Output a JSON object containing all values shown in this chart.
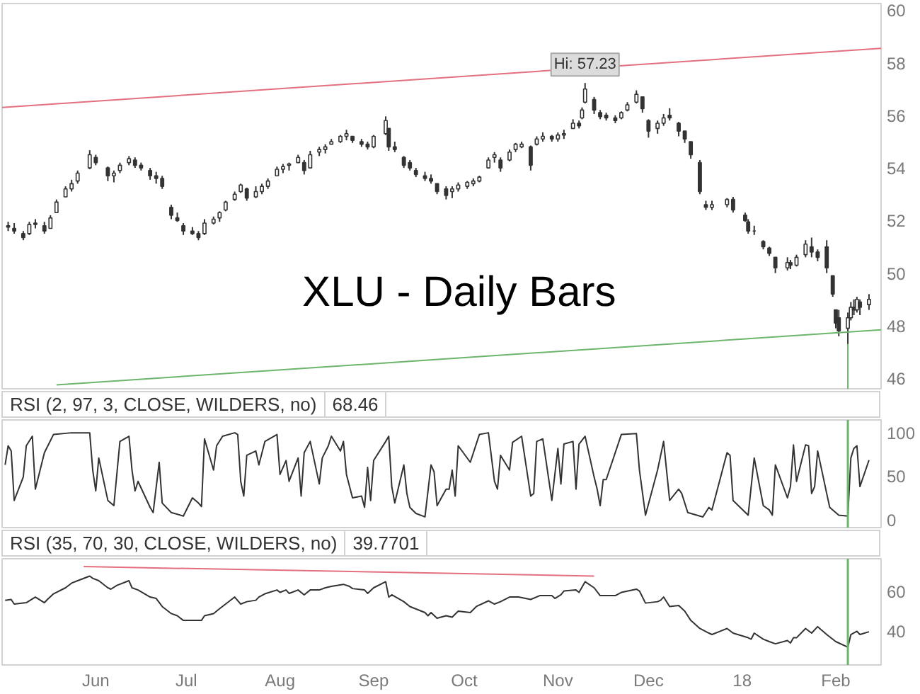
{
  "chart_data": [
    {
      "type": "candlestick",
      "title": "XLU - Daily Bars",
      "color": "#333333",
      "x": [
        "2017-05-03",
        "2017-05-05",
        "2017-05-08",
        "2017-05-10",
        "2017-05-12",
        "2017-05-15",
        "2017-05-17",
        "2017-05-19",
        "2017-05-22",
        "2017-05-24",
        "2017-05-26",
        "2017-05-30",
        "2017-06-01",
        "2017-06-05",
        "2017-06-07",
        "2017-06-09",
        "2017-06-12",
        "2017-06-14",
        "2017-06-16",
        "2017-06-19",
        "2017-06-21",
        "2017-06-23",
        "2017-06-26",
        "2017-06-28",
        "2017-06-30",
        "2017-07-03",
        "2017-07-05",
        "2017-07-07",
        "2017-07-10",
        "2017-07-12",
        "2017-07-14",
        "2017-07-17",
        "2017-07-19",
        "2017-07-21",
        "2017-07-24",
        "2017-07-26",
        "2017-07-28",
        "2017-07-31",
        "2017-08-02",
        "2017-08-04",
        "2017-08-07",
        "2017-08-09",
        "2017-08-11",
        "2017-08-14",
        "2017-08-16",
        "2017-08-18",
        "2017-08-21",
        "2017-08-23",
        "2017-08-25",
        "2017-08-28",
        "2017-08-30",
        "2017-09-01",
        "2017-09-05",
        "2017-09-06",
        "2017-09-08",
        "2017-09-11",
        "2017-09-13",
        "2017-09-15",
        "2017-09-18",
        "2017-09-20",
        "2017-09-22",
        "2017-09-25",
        "2017-09-27",
        "2017-09-29",
        "2017-10-02",
        "2017-10-04",
        "2017-10-06",
        "2017-10-09",
        "2017-10-11",
        "2017-10-13",
        "2017-10-16",
        "2017-10-18",
        "2017-10-20",
        "2017-10-23",
        "2017-10-25",
        "2017-10-27",
        "2017-10-30",
        "2017-11-01",
        "2017-11-03",
        "2017-11-06",
        "2017-11-08",
        "2017-11-09",
        "2017-11-10",
        "2017-11-13",
        "2017-11-15",
        "2017-11-17",
        "2017-11-20",
        "2017-11-22",
        "2017-11-24",
        "2017-11-27",
        "2017-11-29",
        "2017-12-01",
        "2017-12-04",
        "2017-12-06",
        "2017-12-08",
        "2017-12-11",
        "2017-12-13",
        "2017-12-15",
        "2017-12-18",
        "2017-12-20",
        "2017-12-22",
        "2017-12-27",
        "2017-12-29",
        "2018-01-02",
        "2018-01-03",
        "2018-01-05",
        "2018-01-08",
        "2018-01-10",
        "2018-01-12",
        "2018-01-16",
        "2018-01-17",
        "2018-01-19",
        "2018-01-22",
        "2018-01-24",
        "2018-01-26",
        "2018-01-29",
        "2018-01-31",
        "2018-02-01",
        "2018-02-02",
        "2018-02-05",
        "2018-02-06",
        "2018-02-07",
        "2018-02-08",
        "2018-02-09",
        "2018-02-12"
      ],
      "ohlc": [
        [
          51.8,
          51.95,
          51.6,
          51.75
        ],
        [
          51.7,
          51.9,
          51.5,
          51.6
        ],
        [
          51.5,
          51.6,
          51.25,
          51.35
        ],
        [
          51.5,
          51.95,
          51.45,
          51.85
        ],
        [
          51.9,
          52.05,
          51.7,
          51.85
        ],
        [
          51.8,
          51.95,
          51.5,
          51.6
        ],
        [
          51.7,
          52.2,
          51.7,
          52.1
        ],
        [
          52.3,
          52.8,
          52.3,
          52.7
        ],
        [
          52.9,
          53.3,
          52.9,
          53.2
        ],
        [
          53.2,
          53.55,
          53.1,
          53.4
        ],
        [
          53.5,
          53.9,
          53.4,
          53.8
        ],
        [
          54.0,
          54.67,
          53.95,
          54.5
        ],
        [
          54.4,
          54.5,
          54.1,
          54.2
        ],
        [
          54.0,
          54.05,
          53.5,
          53.7
        ],
        [
          53.7,
          53.9,
          53.45,
          53.8
        ],
        [
          53.9,
          54.2,
          53.8,
          54.1
        ],
        [
          54.2,
          54.45,
          54.1,
          54.35
        ],
        [
          54.3,
          54.4,
          54.0,
          54.1
        ],
        [
          54.1,
          54.2,
          53.9,
          54.0
        ],
        [
          53.9,
          54.0,
          53.55,
          53.7
        ],
        [
          53.7,
          53.85,
          53.4,
          53.6
        ],
        [
          53.6,
          53.7,
          53.2,
          53.3
        ],
        [
          52.5,
          52.6,
          52.05,
          52.2
        ],
        [
          52.1,
          52.3,
          51.95,
          52.0
        ],
        [
          51.8,
          51.9,
          51.45,
          51.6
        ],
        [
          51.6,
          51.75,
          51.45,
          51.5
        ],
        [
          51.5,
          51.6,
          51.25,
          51.35
        ],
        [
          51.5,
          52.05,
          51.45,
          51.9
        ],
        [
          51.9,
          52.15,
          51.85,
          52.05
        ],
        [
          52.1,
          52.35,
          51.95,
          52.3
        ],
        [
          52.4,
          52.75,
          52.35,
          52.7
        ],
        [
          52.8,
          53.1,
          52.75,
          53.0
        ],
        [
          53.1,
          53.4,
          53.05,
          53.35
        ],
        [
          53.2,
          53.25,
          52.75,
          52.85
        ],
        [
          52.9,
          53.3,
          52.85,
          53.1
        ],
        [
          53.1,
          53.4,
          53.0,
          53.3
        ],
        [
          53.3,
          53.6,
          53.2,
          53.5
        ],
        [
          53.7,
          54.05,
          53.7,
          53.95
        ],
        [
          53.95,
          54.15,
          53.8,
          54.05
        ],
        [
          54.1,
          54.2,
          53.9,
          54.15
        ],
        [
          54.2,
          54.5,
          54.2,
          54.4
        ],
        [
          54.2,
          54.3,
          53.75,
          53.9
        ],
        [
          54.0,
          54.65,
          54.0,
          54.5
        ],
        [
          54.6,
          54.8,
          54.45,
          54.7
        ],
        [
          54.7,
          54.9,
          54.55,
          54.8
        ],
        [
          54.9,
          55.1,
          54.9,
          55.0
        ],
        [
          55.0,
          55.25,
          54.95,
          55.2
        ],
        [
          55.2,
          55.45,
          55.05,
          55.3
        ],
        [
          55.2,
          55.2,
          54.95,
          55.05
        ],
        [
          55.0,
          55.1,
          54.8,
          54.9
        ],
        [
          54.9,
          55.0,
          54.7,
          54.8
        ],
        [
          54.8,
          55.25,
          54.75,
          55.2
        ],
        [
          55.3,
          55.96,
          55.25,
          55.8
        ],
        [
          55.5,
          55.5,
          54.65,
          54.8
        ],
        [
          54.8,
          55.0,
          54.6,
          54.7
        ],
        [
          54.4,
          54.45,
          54.0,
          54.1
        ],
        [
          54.2,
          54.3,
          53.9,
          54.0
        ],
        [
          53.9,
          54.0,
          53.65,
          53.75
        ],
        [
          53.7,
          53.85,
          53.5,
          53.6
        ],
        [
          53.6,
          53.75,
          53.4,
          53.5
        ],
        [
          53.4,
          53.4,
          53.0,
          53.1
        ],
        [
          53.2,
          53.3,
          52.8,
          52.95
        ],
        [
          53.1,
          53.3,
          52.85,
          53.2
        ],
        [
          53.2,
          53.45,
          53.1,
          53.35
        ],
        [
          53.3,
          53.5,
          53.2,
          53.45
        ],
        [
          53.4,
          53.6,
          53.3,
          53.5
        ],
        [
          53.5,
          53.7,
          53.45,
          53.65
        ],
        [
          54.0,
          54.4,
          54.0,
          54.3
        ],
        [
          54.4,
          54.6,
          54.2,
          54.5
        ],
        [
          54.3,
          54.4,
          53.85,
          54.0
        ],
        [
          54.3,
          54.7,
          54.25,
          54.6
        ],
        [
          54.7,
          54.95,
          54.6,
          54.9
        ],
        [
          54.8,
          55.0,
          54.75,
          54.9
        ],
        [
          54.8,
          54.85,
          53.9,
          54.1
        ],
        [
          54.9,
          55.2,
          54.85,
          55.1
        ],
        [
          55.1,
          55.35,
          55.0,
          55.2
        ],
        [
          55.2,
          55.25,
          55.0,
          55.1
        ],
        [
          55.1,
          55.35,
          55.0,
          55.25
        ],
        [
          55.25,
          55.45,
          55.1,
          55.3
        ],
        [
          55.5,
          55.85,
          55.5,
          55.7
        ],
        [
          55.7,
          55.8,
          55.5,
          55.6
        ],
        [
          55.9,
          56.3,
          55.85,
          56.2
        ],
        [
          56.5,
          57.23,
          56.45,
          57.0
        ],
        [
          56.6,
          56.7,
          56.05,
          56.2
        ],
        [
          56.1,
          56.2,
          55.85,
          55.95
        ],
        [
          56.0,
          56.1,
          55.8,
          55.9
        ],
        [
          55.9,
          56.0,
          55.7,
          55.8
        ],
        [
          55.9,
          56.15,
          55.85,
          56.1
        ],
        [
          56.2,
          56.5,
          56.15,
          56.4
        ],
        [
          56.5,
          56.95,
          56.45,
          56.8
        ],
        [
          56.7,
          56.7,
          56.1,
          56.25
        ],
        [
          55.8,
          55.85,
          55.15,
          55.4
        ],
        [
          55.5,
          55.8,
          55.3,
          55.7
        ],
        [
          55.7,
          56.05,
          55.6,
          55.9
        ],
        [
          56.0,
          56.27,
          55.8,
          55.9
        ],
        [
          55.7,
          55.75,
          55.2,
          55.4
        ],
        [
          55.4,
          55.4,
          54.95,
          55.1
        ],
        [
          55.0,
          55.0,
          54.35,
          54.5
        ],
        [
          54.2,
          54.3,
          53.0,
          53.1
        ],
        [
          52.6,
          52.75,
          52.4,
          52.5
        ],
        [
          52.5,
          52.75,
          52.4,
          52.6
        ],
        [
          52.6,
          52.85,
          52.5,
          52.8
        ],
        [
          52.8,
          52.9,
          52.3,
          52.4
        ],
        [
          52.2,
          52.3,
          51.95,
          52.0
        ],
        [
          51.95,
          52.05,
          51.5,
          51.6
        ],
        [
          51.6,
          51.8,
          51.45,
          51.6
        ],
        [
          51.2,
          51.25,
          50.9,
          51.0
        ],
        [
          50.95,
          51.0,
          50.65,
          50.75
        ],
        [
          50.6,
          50.6,
          50.0,
          50.2
        ],
        [
          50.2,
          50.6,
          50.1,
          50.4
        ],
        [
          50.4,
          50.5,
          50.15,
          50.3
        ],
        [
          50.3,
          50.7,
          50.25,
          50.6
        ],
        [
          50.7,
          51.25,
          50.6,
          51.1
        ],
        [
          51.0,
          51.35,
          50.6,
          50.8
        ],
        [
          50.8,
          50.9,
          50.45,
          50.6
        ],
        [
          51.0,
          51.25,
          50.0,
          50.2
        ],
        [
          49.9,
          49.9,
          49.1,
          49.2
        ],
        [
          48.6,
          48.6,
          47.9,
          48.1
        ],
        [
          48.3,
          48.6,
          47.6,
          47.8
        ],
        [
          47.9,
          48.5,
          47.3,
          48.3
        ],
        [
          48.3,
          48.9,
          48.2,
          48.7
        ],
        [
          48.7,
          49.0,
          48.4,
          48.6
        ],
        [
          48.6,
          49.1,
          48.5,
          49.0
        ],
        [
          48.9,
          49.0,
          48.4,
          48.7
        ],
        [
          48.8,
          49.2,
          48.6,
          49.0
        ]
      ],
      "series": [
        {
          "type": "line",
          "color": "#e46f7e",
          "x": [
            "2017-05-01",
            "2018-02-16"
          ],
          "values": [
            56.3,
            58.55
          ]
        },
        {
          "type": "line",
          "color": "#6cb56c",
          "x": [
            "2017-05-19",
            "2018-02-16"
          ],
          "values": [
            45.75,
            47.84
          ]
        },
        {
          "type": "line",
          "color": "#6cb56c",
          "x": [
            "2018-02-05",
            "2018-02-05"
          ],
          "values": [
            45.6,
            47.3
          ]
        }
      ],
      "annotations": [
        {
          "text": "Hi: 57.23",
          "x": "2017-11-10",
          "y": 57.23
        }
      ],
      "xlim": [
        "2017-05-01",
        "2018-02-16"
      ],
      "ylim": [
        45.6,
        60.25
      ],
      "yticks": [
        46,
        48,
        50,
        52,
        54,
        56,
        58,
        60
      ],
      "tick_labels": "y"
    },
    {
      "type": "line",
      "title": "RSI (2, 97, 3, CLOSE, WILDERS, no)",
      "subtitle": "68.46",
      "series": [
        {
          "color": "#333333",
          "x": [
            "2017-05-02",
            "2017-05-03",
            "2017-05-04",
            "2017-05-05",
            "2017-05-08",
            "2017-05-09",
            "2017-05-11",
            "2017-05-12",
            "2017-05-15",
            "2017-05-18",
            "2017-05-24",
            "2017-05-30",
            "2017-05-31",
            "2017-06-01",
            "2017-06-02",
            "2017-06-05",
            "2017-06-07",
            "2017-06-09",
            "2017-06-12",
            "2017-06-13",
            "2017-06-14",
            "2017-06-15",
            "2017-06-19",
            "2017-06-20",
            "2017-06-22",
            "2017-06-23",
            "2017-06-26",
            "2017-06-30",
            "2017-07-03",
            "2017-07-05",
            "2017-07-06",
            "2017-07-07",
            "2017-07-10",
            "2017-07-11",
            "2017-07-13",
            "2017-07-17",
            "2017-07-18",
            "2017-07-19",
            "2017-07-20",
            "2017-07-21",
            "2017-07-24",
            "2017-07-25",
            "2017-07-27",
            "2017-07-31",
            "2017-08-01",
            "2017-08-03",
            "2017-08-04",
            "2017-08-07",
            "2017-08-08",
            "2017-08-09",
            "2017-08-11",
            "2017-08-14",
            "2017-08-15",
            "2017-08-17",
            "2017-08-18",
            "2017-08-21",
            "2017-08-22",
            "2017-08-23",
            "2017-08-25",
            "2017-08-28",
            "2017-08-29",
            "2017-08-30",
            "2017-08-31",
            "2017-09-01",
            "2017-09-05",
            "2017-09-06",
            "2017-09-07",
            "2017-09-08",
            "2017-09-11",
            "2017-09-12",
            "2017-09-13",
            "2017-09-15",
            "2017-09-18",
            "2017-09-20",
            "2017-09-21",
            "2017-09-22",
            "2017-09-25",
            "2017-09-26",
            "2017-09-27",
            "2017-09-28",
            "2017-09-29",
            "2017-10-03",
            "2017-10-06",
            "2017-10-09",
            "2017-10-11",
            "2017-10-12",
            "2017-10-13",
            "2017-10-16",
            "2017-10-17",
            "2017-10-20",
            "2017-10-23",
            "2017-10-24",
            "2017-10-25",
            "2017-10-27",
            "2017-10-30",
            "2017-11-01",
            "2017-11-02",
            "2017-11-03",
            "2017-11-06",
            "2017-11-07",
            "2017-11-08",
            "2017-11-10",
            "2017-11-13",
            "2017-11-14",
            "2017-11-15",
            "2017-11-16",
            "2017-11-17",
            "2017-11-22",
            "2017-11-27",
            "2017-11-28",
            "2017-11-30",
            "2017-12-04",
            "2017-12-06",
            "2017-12-08",
            "2017-12-11",
            "2017-12-12",
            "2017-12-14",
            "2017-12-19",
            "2017-12-21",
            "2017-12-22",
            "2017-12-27",
            "2017-12-28",
            "2017-12-29",
            "2018-01-03",
            "2018-01-05",
            "2018-01-08",
            "2018-01-10",
            "2018-01-11",
            "2018-01-12",
            "2018-01-16",
            "2018-01-17",
            "2018-01-18",
            "2018-01-19",
            "2018-01-22",
            "2018-01-23",
            "2018-01-24",
            "2018-01-25",
            "2018-01-26",
            "2018-01-29",
            "2018-01-30",
            "2018-02-02",
            "2018-02-05",
            "2018-02-06",
            "2018-02-07",
            "2018-02-08",
            "2018-02-09",
            "2018-02-12"
          ],
          "values": [
            63,
            85,
            79,
            22,
            49,
            85,
            96,
            35,
            77,
            98,
            100,
            100,
            57,
            33,
            71,
            22,
            16,
            90,
            96,
            57,
            33,
            44,
            14,
            8,
            66,
            19,
            8,
            4,
            25,
            19,
            15,
            93,
            57,
            85,
            96,
            100,
            98,
            44,
            27,
            74,
            79,
            63,
            90,
            98,
            52,
            68,
            44,
            71,
            27,
            77,
            90,
            41,
            71,
            85,
            96,
            79,
            90,
            52,
            25,
            27,
            14,
            60,
            22,
            68,
            90,
            96,
            38,
            19,
            63,
            30,
            14,
            7,
            3,
            63,
            55,
            16,
            35,
            35,
            57,
            27,
            85,
            66,
            98,
            100,
            44,
            35,
            74,
            57,
            89,
            96,
            27,
            30,
            90,
            93,
            22,
            82,
            41,
            87,
            90,
            35,
            87,
            96,
            49,
            35,
            16,
            46,
            46,
            98,
            99,
            57,
            5,
            57,
            90,
            22,
            35,
            30,
            8,
            3,
            14,
            11,
            77,
            74,
            22,
            5,
            71,
            16,
            11,
            5,
            63,
            25,
            38,
            86,
            44,
            86,
            85,
            30,
            38,
            79,
            30,
            14,
            5,
            4,
            71,
            82,
            85,
            38,
            68.46
          ]
        }
      ],
      "ref_lines": [
        {
          "axis": "x",
          "value": "2018-02-05",
          "color": "#6cb56c"
        }
      ],
      "xlim": [
        "2017-05-01",
        "2018-02-16"
      ],
      "ylim": [
        -9.3,
        114.8
      ],
      "yticks": [
        0,
        50,
        100
      ],
      "tick_labels": "y"
    },
    {
      "type": "line",
      "title": "RSI (35, 70, 30, CLOSE, WILDERS, no)",
      "subtitle": "39.7701",
      "series": [
        {
          "color": "#333333",
          "x": [
            "2017-05-02",
            "2017-05-04",
            "2017-05-05",
            "2017-05-09",
            "2017-05-12",
            "2017-05-15",
            "2017-05-16",
            "2017-05-18",
            "2017-05-22",
            "2017-05-24",
            "2017-05-26",
            "2017-05-30",
            "2017-05-31",
            "2017-06-02",
            "2017-06-05",
            "2017-06-06",
            "2017-06-08",
            "2017-06-12",
            "2017-06-13",
            "2017-06-15",
            "2017-06-19",
            "2017-06-21",
            "2017-06-23",
            "2017-06-26",
            "2017-06-28",
            "2017-06-30",
            "2017-07-05",
            "2017-07-06",
            "2017-07-07",
            "2017-07-10",
            "2017-07-12",
            "2017-07-14",
            "2017-07-17",
            "2017-07-19",
            "2017-07-21",
            "2017-07-24",
            "2017-07-25",
            "2017-07-27",
            "2017-07-31",
            "2017-08-01",
            "2017-08-03",
            "2017-08-04",
            "2017-08-07",
            "2017-08-09",
            "2017-08-11",
            "2017-08-14",
            "2017-08-16",
            "2017-08-18",
            "2017-08-22",
            "2017-08-24",
            "2017-08-25",
            "2017-08-29",
            "2017-08-30",
            "2017-09-01",
            "2017-09-05",
            "2017-09-06",
            "2017-09-07",
            "2017-09-11",
            "2017-09-13",
            "2017-09-18",
            "2017-09-19",
            "2017-09-20",
            "2017-09-22",
            "2017-09-25",
            "2017-09-27",
            "2017-09-29",
            "2017-10-03",
            "2017-10-05",
            "2017-10-09",
            "2017-10-11",
            "2017-10-13",
            "2017-10-16",
            "2017-10-19",
            "2017-10-23",
            "2017-10-26",
            "2017-10-30",
            "2017-10-31",
            "2017-11-02",
            "2017-11-03",
            "2017-11-07",
            "2017-11-08",
            "2017-11-10",
            "2017-11-13",
            "2017-11-15",
            "2017-11-20",
            "2017-11-22",
            "2017-11-27",
            "2017-11-28",
            "2017-11-30",
            "2017-12-04",
            "2017-12-05",
            "2017-12-06",
            "2017-12-08",
            "2017-12-11",
            "2017-12-13",
            "2017-12-15",
            "2017-12-18",
            "2017-12-21",
            "2017-12-22",
            "2017-12-27",
            "2017-12-29",
            "2018-01-03",
            "2018-01-04",
            "2018-01-05",
            "2018-01-08",
            "2018-01-10",
            "2018-01-12",
            "2018-01-16",
            "2018-01-17",
            "2018-01-18",
            "2018-01-19",
            "2018-01-22",
            "2018-01-24",
            "2018-01-26",
            "2018-01-29",
            "2018-02-01",
            "2018-02-05",
            "2018-02-06",
            "2018-02-08",
            "2018-02-09",
            "2018-02-12"
          ],
          "values": [
            55.4,
            55.8,
            53.5,
            54.2,
            57,
            54.2,
            55.8,
            58.6,
            61.6,
            63.9,
            65.1,
            67.4,
            66.3,
            65.1,
            61.6,
            60.9,
            62.8,
            65.1,
            61.6,
            60.5,
            57,
            56.3,
            52.3,
            48.8,
            47.7,
            45.4,
            45.4,
            45.4,
            47.7,
            48.8,
            51.2,
            53.5,
            57,
            53.5,
            54.7,
            55.4,
            57,
            58.6,
            60.5,
            59.3,
            60.5,
            58.8,
            60.5,
            58.1,
            60.5,
            60.5,
            61.6,
            62.3,
            63.3,
            62.3,
            61.2,
            60.5,
            58.8,
            61.6,
            64.6,
            57,
            58.1,
            54.7,
            52.3,
            49.3,
            47.7,
            49.3,
            46.5,
            47.7,
            47,
            50,
            49.3,
            52.3,
            55.1,
            53.5,
            54.7,
            57,
            57,
            55.8,
            57.7,
            57.7,
            56.3,
            58.1,
            60,
            60.5,
            59.3,
            64.6,
            61.6,
            57.7,
            57.7,
            59.3,
            60.9,
            60,
            54,
            54.7,
            55.4,
            57,
            52.3,
            52.8,
            50,
            45.4,
            41.4,
            39.1,
            38.4,
            41.4,
            39.1,
            36.8,
            36.1,
            39.1,
            36.1,
            34.9,
            33.8,
            35.4,
            34.2,
            36.8,
            36.8,
            41.4,
            39.1,
            42.3,
            38.4,
            34.9,
            32.1,
            38.4,
            40,
            38.4,
            39.77
          ]
        },
        {
          "color": "#e46f7e",
          "x": [
            "2017-05-28",
            "2017-11-13"
          ],
          "values": [
            72.1,
            67.4
          ]
        }
      ],
      "ref_lines": [
        {
          "axis": "x",
          "value": "2018-02-05",
          "color": "#6cb56c"
        }
      ],
      "xlim": [
        "2017-05-01",
        "2018-02-16"
      ],
      "ylim": [
        23.3,
        76
      ],
      "yticks": [
        40,
        60
      ],
      "xticks": [
        {
          "value": "2017-06-01",
          "label": "Jun"
        },
        {
          "value": "2017-07-01",
          "label": "Jul"
        },
        {
          "value": "2017-08-01",
          "label": "Aug"
        },
        {
          "value": "2017-09-01",
          "label": "Sep"
        },
        {
          "value": "2017-10-01",
          "label": "Oct"
        },
        {
          "value": "2017-11-01",
          "label": "Nov"
        },
        {
          "value": "2017-12-01",
          "label": "Dec"
        },
        {
          "value": "2018-01-01",
          "label": "18"
        },
        {
          "value": "2018-02-01",
          "label": "Feb"
        }
      ]
    }
  ]
}
